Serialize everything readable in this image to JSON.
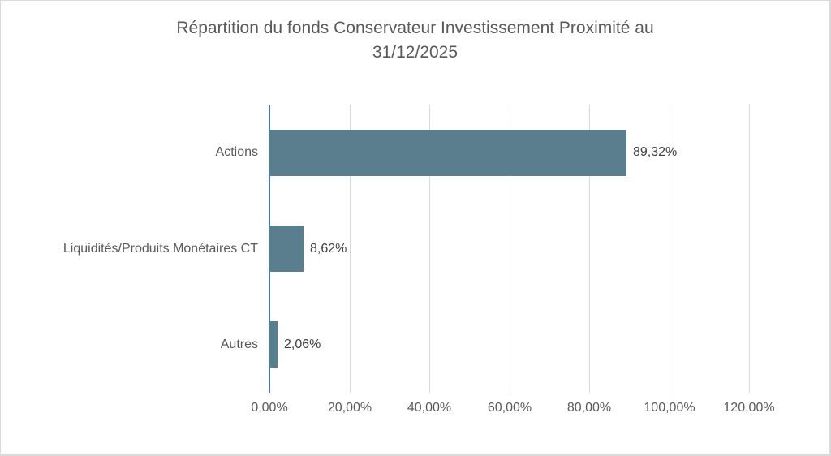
{
  "window": {
    "background": "#ffffff",
    "border_color": "#dadada"
  },
  "chart_data": {
    "type": "bar",
    "orientation": "horizontal",
    "title": "Répartition du fonds Conservateur Investissement Proximité au 31/12/2025",
    "title_lines": [
      "Répartition du fonds Conservateur Investissement Proximité au",
      "31/12/2025"
    ],
    "categories": [
      "Actions",
      "Liquidités/Produits Monétaires CT",
      "Autres"
    ],
    "values": [
      89.32,
      8.62,
      2.06
    ],
    "data_labels": [
      "89,32%",
      "8,62%",
      "2,06%"
    ],
    "xlabel": "",
    "ylabel": "",
    "xlim": [
      0,
      120
    ],
    "x_ticks": [
      {
        "value": 0,
        "label": "0,00%"
      },
      {
        "value": 20,
        "label": "20,00%"
      },
      {
        "value": 40,
        "label": "40,00%"
      },
      {
        "value": 60,
        "label": "60,00%"
      },
      {
        "value": 80,
        "label": "80,00%"
      },
      {
        "value": 100,
        "label": "100,00%"
      },
      {
        "value": 120,
        "label": "120,00%"
      }
    ],
    "grid": "vertical",
    "legend": "none",
    "colors": {
      "bar": "#5b7e8e",
      "axis_line": "#4472c4",
      "gridline": "#d9d9d9",
      "title_text": "#595959",
      "axis_text": "#595959",
      "data_label_text": "#404040"
    }
  }
}
